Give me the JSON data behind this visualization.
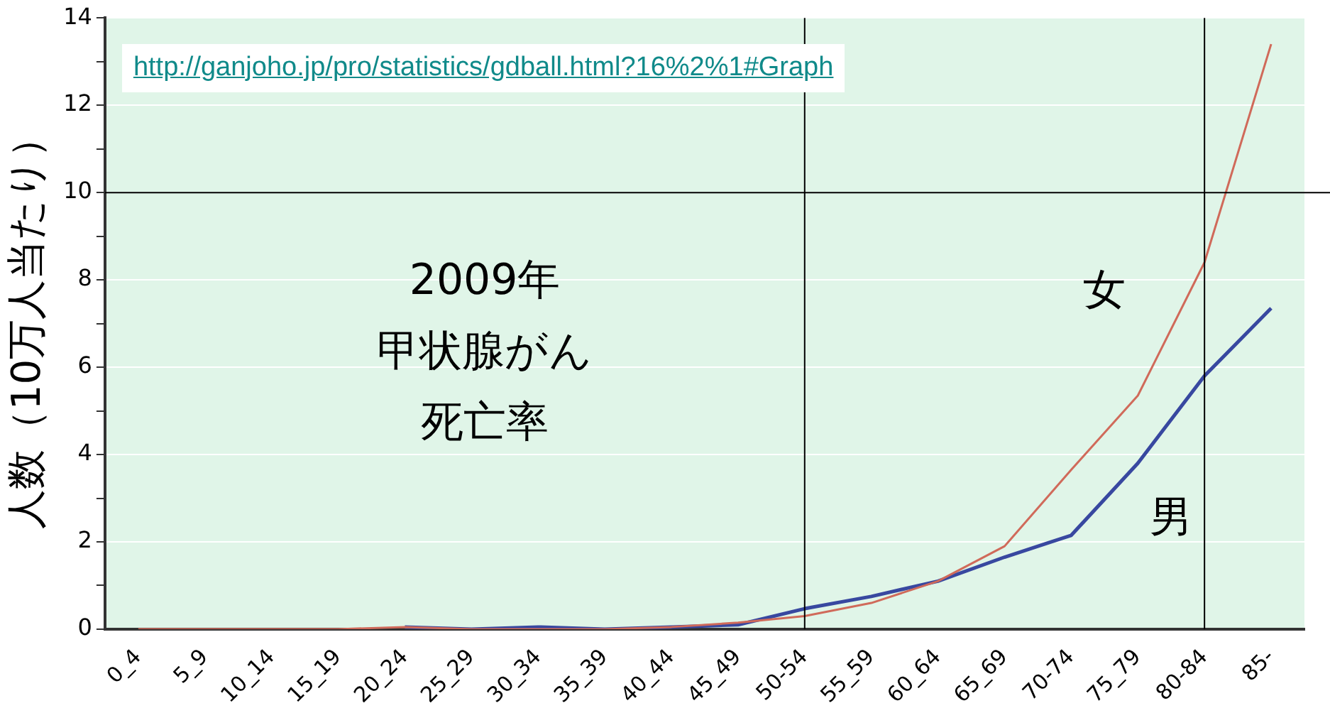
{
  "chart_data": {
    "type": "line",
    "title": "2009年",
    "subtitle": "甲状腺がん死亡率",
    "ylabel": "人数（10万人当たり）",
    "annotations": [
      "http://ganjoho.jp/pro/statistics/gdball.html?16%2%1#Graph"
    ],
    "categories": [
      "0_4",
      "5_9",
      "10_14",
      "15_19",
      "20_24",
      "25_29",
      "30_34",
      "35_39",
      "40_44",
      "45_49",
      "50-54",
      "55_59",
      "60_64",
      "65_69",
      "70-74",
      "75_79",
      "80-84",
      "85-"
    ],
    "series": [
      {
        "name": "女",
        "color": "#d06a5a",
        "values": [
          0,
          0,
          0,
          0,
          0.05,
          0,
          0,
          0,
          0.05,
          0.15,
          0.3,
          0.6,
          1.1,
          1.9,
          3.65,
          5.35,
          8.4,
          13.4
        ]
      },
      {
        "name": "男",
        "color": "#3848a0",
        "values": [
          null,
          null,
          null,
          null,
          0.05,
          0,
          0.05,
          0,
          0.05,
          0.1,
          0.47,
          0.75,
          1.1,
          1.65,
          2.15,
          3.8,
          5.8,
          7.35
        ]
      }
    ],
    "ylim": [
      0,
      14
    ],
    "yticks": [
      0,
      {
        "value": 1,
        "label": null
      },
      2,
      {
        "value": 3,
        "label": null
      },
      4,
      {
        "value": 5,
        "label": null
      },
      6,
      {
        "value": 7,
        "label": null
      },
      8,
      {
        "value": 9,
        "label": null
      },
      10,
      {
        "value": 11,
        "label": null
      },
      12,
      {
        "value": 13,
        "label": null
      },
      14
    ],
    "ref_lines": [
      {
        "axis": "y",
        "value": 10,
        "label": null,
        "color": "#000000"
      },
      {
        "axis": "x",
        "value": "50-54",
        "label": null,
        "color": "#000000"
      },
      {
        "axis": "x",
        "value": "80-84",
        "label": null,
        "color": "#000000"
      }
    ],
    "grid": "y",
    "legend": false,
    "marker": "none",
    "line_style": "solid"
  }
}
